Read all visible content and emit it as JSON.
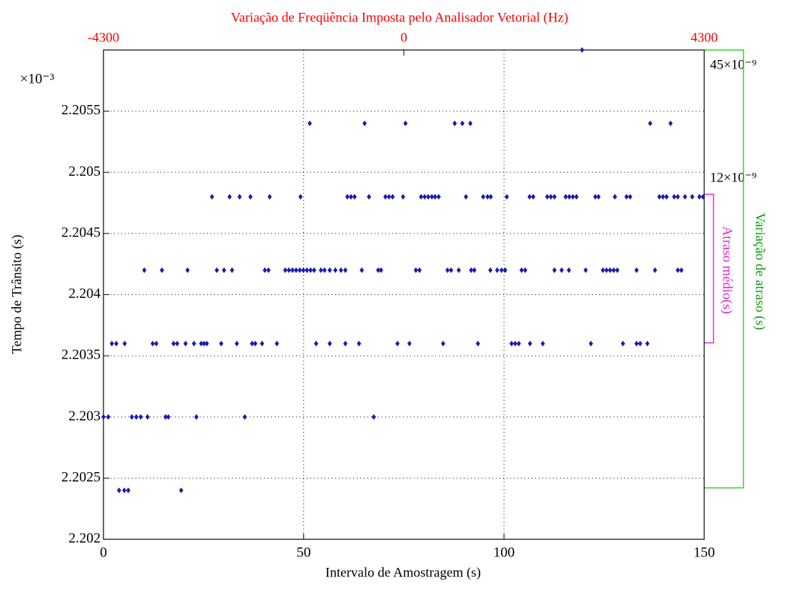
{
  "chart_data": {
    "type": "scatter",
    "title": "Variação de Freqüência Imposta pelo Analisador Vetorial (Hz)",
    "x_label": "Intervalo de Amostragem (s)",
    "y_label": "Tempo de Trânsito (s)",
    "y_exponent_label": "×10⁻³",
    "color": "#1c1caa",
    "grid": true,
    "xlim": [
      0,
      150
    ],
    "xticks": [
      0,
      50,
      100,
      150
    ],
    "x2lim": [
      -4300,
      4300
    ],
    "x2ticks": [
      -4300,
      0,
      4300
    ],
    "ylim": [
      2.202,
      2.206
    ],
    "yticks": [
      2.202,
      2.2025,
      2.203,
      2.2035,
      2.204,
      2.2045,
      2.205,
      2.2055
    ],
    "annotations": {
      "delay_range": "45×10⁻⁹",
      "mean_range": "12×10⁻⁹",
      "delay_label": "Variação de atraso (s)",
      "mean_label": "Atraso médio(s)"
    },
    "x": [
      119.5,
      51.5,
      65.2,
      75.4,
      87.7,
      89.6,
      91.6,
      136.5,
      141.6,
      27.1,
      31.5,
      34.0,
      36.7,
      41.5,
      49.2,
      60.9,
      61.8,
      62.7,
      66.3,
      70.4,
      71.3,
      72.2,
      74.8,
      79.3,
      80.2,
      81.1,
      82.0,
      82.8,
      83.7,
      90.5,
      94.8,
      95.9,
      96.7,
      100.7,
      106.4,
      107.3,
      110.8,
      111.7,
      112.6,
      115.4,
      116.3,
      117.2,
      118.1,
      122.8,
      123.6,
      127.7,
      130.6,
      131.5,
      138.8,
      139.7,
      140.6,
      142.5,
      143.4,
      145.2,
      147.0,
      148.8,
      149.7,
      10.2,
      14.6,
      21.0,
      28.3,
      30.1,
      32.1,
      40.3,
      41.2,
      45.4,
      46.3,
      47.2,
      48.1,
      49.0,
      49.9,
      50.8,
      51.7,
      52.6,
      54.3,
      55.2,
      56.5,
      57.9,
      59.3,
      60.4,
      64.5,
      68.6,
      69.3,
      78.0,
      78.9,
      85.9,
      86.8,
      88.7,
      91.8,
      92.6,
      96.6,
      98.3,
      99.4,
      100.3,
      104.4,
      105.3,
      112.6,
      114.4,
      116.2,
      120.4,
      124.7,
      125.6,
      126.5,
      127.4,
      128.3,
      133.1,
      137.7,
      143.4,
      144.3,
      2.1,
      3.2,
      5.3,
      12.3,
      13.2,
      17.5,
      18.4,
      20.5,
      22.6,
      24.4,
      25.1,
      25.8,
      29.4,
      33.3,
      37.1,
      37.9,
      39.6,
      43.3,
      53.1,
      56.5,
      60.4,
      63.8,
      73.4,
      76.4,
      84.8,
      93.5,
      101.9,
      102.8,
      103.7,
      106.5,
      109.7,
      121.7,
      129.7,
      133.1,
      134.0,
      135.8,
      0,
      1.2,
      7.1,
      8.2,
      9.3,
      11.0,
      15.5,
      16.2,
      23.2,
      35.3,
      67.5,
      3.9,
      5.2,
      6.2,
      19.4
    ],
    "values": [
      2.206,
      2.2054,
      2.2054,
      2.2054,
      2.2054,
      2.2054,
      2.2054,
      2.2054,
      2.2054,
      2.2048,
      2.2048,
      2.2048,
      2.2048,
      2.2048,
      2.2048,
      2.2048,
      2.2048,
      2.2048,
      2.2048,
      2.2048,
      2.2048,
      2.2048,
      2.2048,
      2.2048,
      2.2048,
      2.2048,
      2.2048,
      2.2048,
      2.2048,
      2.2048,
      2.2048,
      2.2048,
      2.2048,
      2.2048,
      2.2048,
      2.2048,
      2.2048,
      2.2048,
      2.2048,
      2.2048,
      2.2048,
      2.2048,
      2.2048,
      2.2048,
      2.2048,
      2.2048,
      2.2048,
      2.2048,
      2.2048,
      2.2048,
      2.2048,
      2.2048,
      2.2048,
      2.2048,
      2.2048,
      2.2048,
      2.2048,
      2.2042,
      2.2042,
      2.2042,
      2.2042,
      2.2042,
      2.2042,
      2.2042,
      2.2042,
      2.2042,
      2.2042,
      2.2042,
      2.2042,
      2.2042,
      2.2042,
      2.2042,
      2.2042,
      2.2042,
      2.2042,
      2.2042,
      2.2042,
      2.2042,
      2.2042,
      2.2042,
      2.2042,
      2.2042,
      2.2042,
      2.2042,
      2.2042,
      2.2042,
      2.2042,
      2.2042,
      2.2042,
      2.2042,
      2.2042,
      2.2042,
      2.2042,
      2.2042,
      2.2042,
      2.2042,
      2.2042,
      2.2042,
      2.2042,
      2.2042,
      2.2042,
      2.2042,
      2.2042,
      2.2042,
      2.2042,
      2.2042,
      2.2042,
      2.2042,
      2.2042,
      2.2036,
      2.2036,
      2.2036,
      2.2036,
      2.2036,
      2.2036,
      2.2036,
      2.2036,
      2.2036,
      2.2036,
      2.2036,
      2.2036,
      2.2036,
      2.2036,
      2.2036,
      2.2036,
      2.2036,
      2.2036,
      2.2036,
      2.2036,
      2.2036,
      2.2036,
      2.2036,
      2.2036,
      2.2036,
      2.2036,
      2.2036,
      2.2036,
      2.2036,
      2.2036,
      2.2036,
      2.2036,
      2.2036,
      2.2036,
      2.2036,
      2.2036,
      2.203,
      2.203,
      2.203,
      2.203,
      2.203,
      2.203,
      2.203,
      2.203,
      2.203,
      2.203,
      2.203,
      2.2024,
      2.2024,
      2.2024,
      2.2024
    ]
  }
}
